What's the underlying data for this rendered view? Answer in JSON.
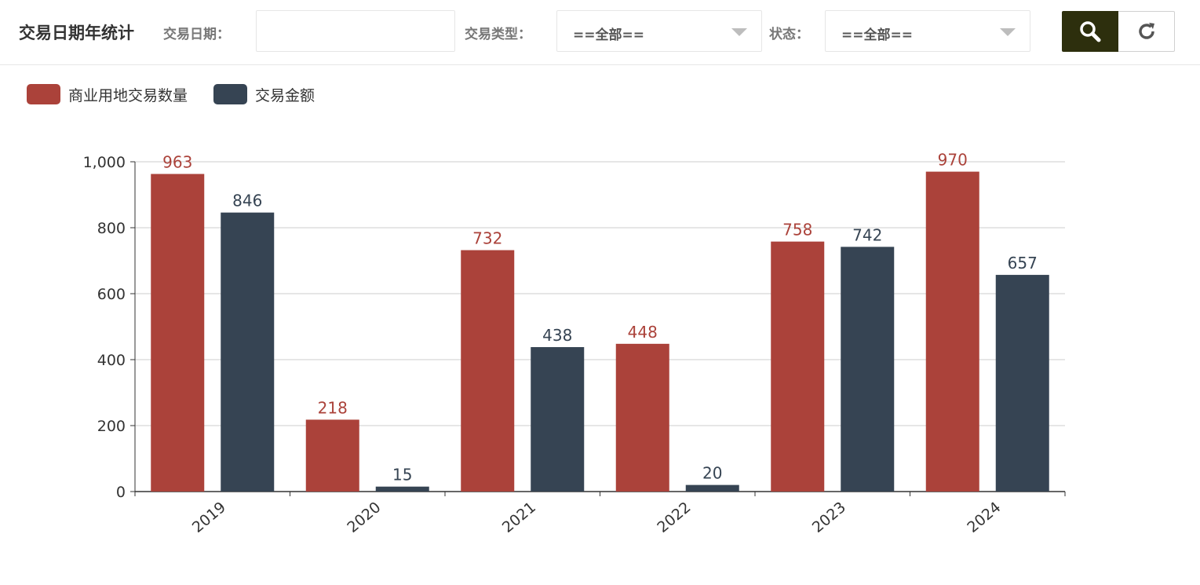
{
  "header": {
    "title": "交易日期年统计",
    "date_label": "交易日期：",
    "date_value": "",
    "type_label": "交易类型：",
    "type_value": "==全部==",
    "status_label": "状态：",
    "status_value": "==全部=="
  },
  "icons": {
    "search": "search-icon",
    "reset": "refresh-icon",
    "dropdown": "caret-down-icon"
  },
  "colors": {
    "series1": "#ab423a",
    "series2": "#364453",
    "search_button": "#2d2f0d"
  },
  "chart_data": {
    "type": "bar",
    "categories": [
      "2019",
      "2020",
      "2021",
      "2022",
      "2023",
      "2024"
    ],
    "series": [
      {
        "name": "商业用地交易数量",
        "values": [
          963,
          218,
          732,
          448,
          758,
          970
        ]
      },
      {
        "name": "交易金额",
        "values": [
          846,
          15,
          438,
          20,
          742,
          657
        ]
      }
    ],
    "ylim": [
      0,
      1000
    ],
    "yticks": [
      "0",
      "200",
      "400",
      "600",
      "800",
      "1,000"
    ],
    "grid": true,
    "legend": "top-left",
    "data_labels": true
  }
}
